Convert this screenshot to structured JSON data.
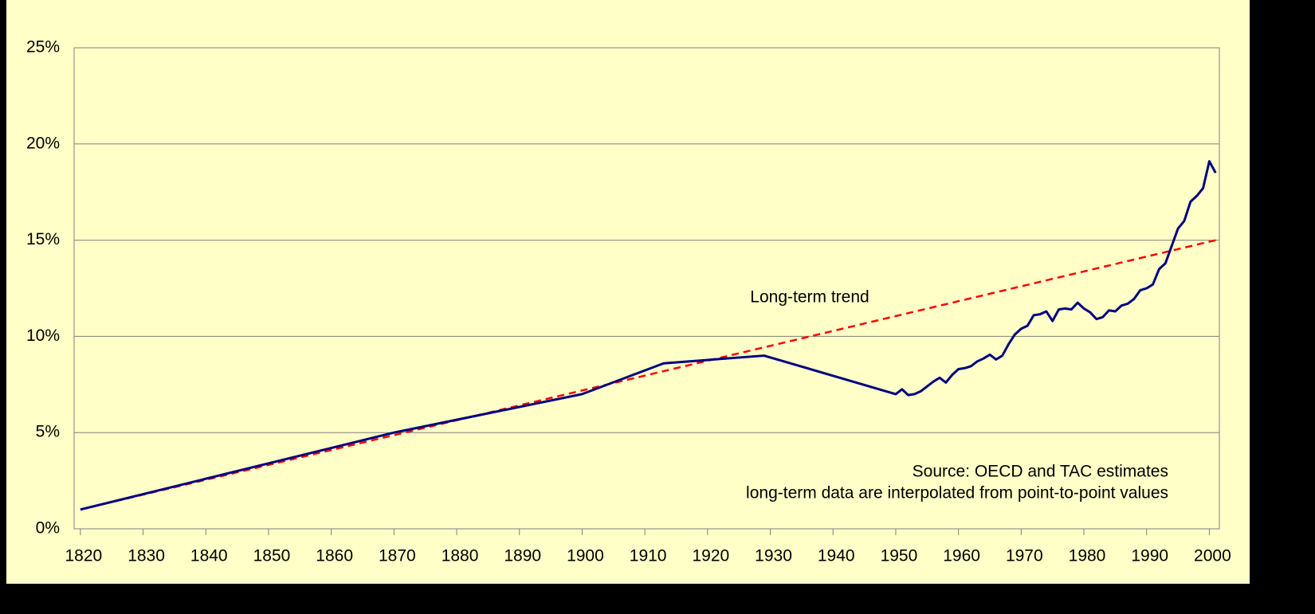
{
  "chart_data": {
    "type": "line",
    "annotations": [
      "Long-term trend",
      "Source: OECD and TAC estimates",
      "long-term data are interpolated from point-to-point values"
    ],
    "series": [
      {
        "color": "#000080",
        "dash": false,
        "x": [
          1820,
          1870,
          1900,
          1913,
          1929,
          1950,
          1951,
          1952,
          1953,
          1954,
          1955,
          1956,
          1957,
          1958,
          1959,
          1960,
          1961,
          1962,
          1963,
          1964,
          1965,
          1966,
          1967,
          1968,
          1969,
          1970,
          1971,
          1972,
          1973,
          1974,
          1975,
          1976,
          1977,
          1978,
          1979,
          1980,
          1981,
          1982,
          1983,
          1984,
          1985,
          1986,
          1987,
          1988,
          1989,
          1990,
          1991,
          1992,
          1993,
          1994,
          1995,
          1996,
          1997,
          1998,
          1999,
          2000,
          2001
        ],
        "values": [
          1.0,
          5.0,
          7.0,
          8.6,
          9.0,
          7.0,
          7.25,
          6.95,
          7.0,
          7.15,
          7.4,
          7.65,
          7.85,
          7.6,
          8.0,
          8.3,
          8.35,
          8.45,
          8.7,
          8.85,
          9.05,
          8.8,
          9.0,
          9.6,
          10.1,
          10.4,
          10.55,
          11.1,
          11.15,
          11.3,
          10.8,
          11.4,
          11.45,
          11.4,
          11.75,
          11.45,
          11.25,
          10.9,
          11.0,
          11.35,
          11.3,
          11.6,
          11.7,
          11.95,
          12.4,
          12.5,
          12.7,
          13.5,
          13.8,
          14.7,
          15.6,
          16.0,
          17.0,
          17.3,
          17.7,
          19.1,
          18.5
        ]
      },
      {
        "color": "#ff0000",
        "dash": true,
        "x": [
          1820,
          2001
        ],
        "values": [
          1.0,
          15.0
        ]
      }
    ],
    "xlim": [
      1819,
      2001.6
    ],
    "xticks": [
      1820,
      1830,
      1840,
      1850,
      1860,
      1870,
      1880,
      1890,
      1900,
      1910,
      1920,
      1930,
      1940,
      1950,
      1960,
      1970,
      1980,
      1990,
      2000
    ],
    "ylim": [
      0,
      25
    ],
    "yticks": [
      {
        "value": 0,
        "label": "0%"
      },
      {
        "value": 5,
        "label": "5%"
      },
      {
        "value": 10,
        "label": "10%"
      },
      {
        "value": 15,
        "label": "15%"
      },
      {
        "value": 20,
        "label": "20%"
      },
      {
        "value": 25,
        "label": "25%"
      }
    ],
    "grid": true
  }
}
